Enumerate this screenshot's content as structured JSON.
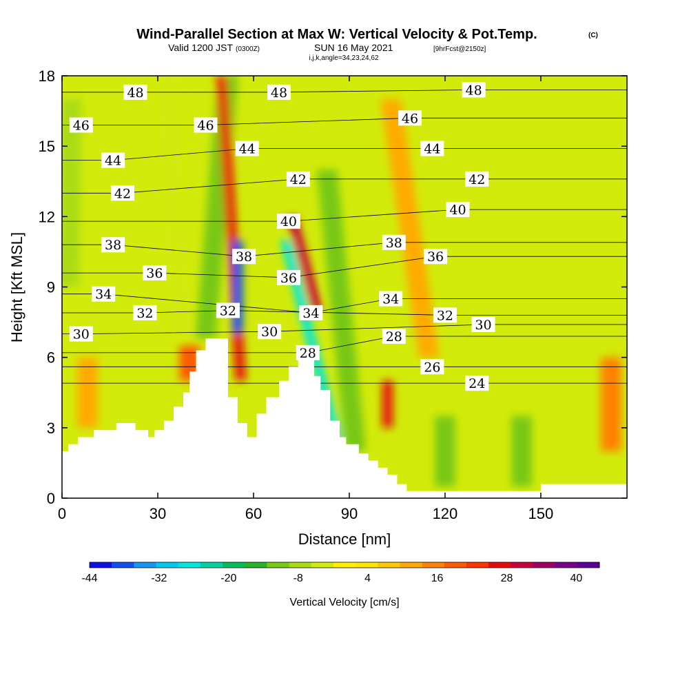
{
  "title": {
    "main": "Wind-Parallel Section at Max W: Vertical Velocity & Pot.Temp.",
    "main_mark": "(C)",
    "valid": "Valid 1200 JST",
    "valid_z": "(0300Z)",
    "date": "SUN 16 May 2021",
    "fcst": "[9hrFcst@2150z]",
    "indices": "i,j,k,angle=34,23,24,62"
  },
  "chart_data": {
    "type": "heatmap",
    "xlabel": "Distance [nm]",
    "ylabel": "Height [Kft MSL]",
    "xlim": [
      0,
      177
    ],
    "ylim": [
      0,
      18
    ],
    "xticks": [
      "0",
      "30",
      "60",
      "90",
      "120",
      "150"
    ],
    "xtick_values": [
      0,
      30,
      60,
      90,
      120,
      150
    ],
    "yticks": [
      "0",
      "3",
      "6",
      "9",
      "12",
      "15",
      "18"
    ],
    "ytick_values": [
      0,
      3,
      6,
      9,
      12,
      15,
      18
    ],
    "colorbar": {
      "title": "Vertical Velocity [cm/s]",
      "min": -44,
      "max": 44,
      "step": 4,
      "tick_labels": [
        "-44",
        "-32",
        "-20",
        "-8",
        "4",
        "16",
        "28",
        "40"
      ],
      "tick_values": [
        -44,
        -32,
        -20,
        -8,
        4,
        16,
        28,
        40
      ],
      "colors": [
        "#1010e6",
        "#1050f0",
        "#1496f0",
        "#00c8f0",
        "#00e6dc",
        "#00d2a0",
        "#00be5a",
        "#28b428",
        "#78c814",
        "#aadc14",
        "#d2eb0a",
        "#fff000",
        "#ffe600",
        "#ffc800",
        "#ffaa00",
        "#ff8200",
        "#ff5a00",
        "#ff3200",
        "#e60a0a",
        "#c8003c",
        "#a00064",
        "#78008c",
        "#5a0096"
      ]
    },
    "terrain_kft": [
      [
        0,
        2.0
      ],
      [
        2,
        2.0
      ],
      [
        2,
        2.3
      ],
      [
        5,
        2.3
      ],
      [
        5,
        2.6
      ],
      [
        10,
        2.6
      ],
      [
        10,
        2.9
      ],
      [
        17,
        2.9
      ],
      [
        17,
        3.2
      ],
      [
        23,
        3.2
      ],
      [
        23,
        2.9
      ],
      [
        27,
        2.9
      ],
      [
        27,
        2.6
      ],
      [
        29,
        2.6
      ],
      [
        29,
        2.9
      ],
      [
        32,
        2.9
      ],
      [
        32,
        3.3
      ],
      [
        35,
        3.3
      ],
      [
        35,
        3.9
      ],
      [
        38,
        3.9
      ],
      [
        38,
        4.5
      ],
      [
        40,
        4.5
      ],
      [
        40,
        5.4
      ],
      [
        42,
        5.4
      ],
      [
        42,
        6.3
      ],
      [
        45,
        6.3
      ],
      [
        45,
        6.8
      ],
      [
        52,
        6.8
      ],
      [
        52,
        4.3
      ],
      [
        55,
        4.3
      ],
      [
        55,
        3.2
      ],
      [
        58,
        3.2
      ],
      [
        58,
        2.6
      ],
      [
        61,
        2.6
      ],
      [
        61,
        3.6
      ],
      [
        64,
        3.6
      ],
      [
        64,
        4.3
      ],
      [
        68,
        4.3
      ],
      [
        68,
        5.0
      ],
      [
        71,
        5.0
      ],
      [
        71,
        5.6
      ],
      [
        74,
        5.6
      ],
      [
        74,
        5.9
      ],
      [
        79,
        5.9
      ],
      [
        79,
        5.2
      ],
      [
        81,
        5.2
      ],
      [
        81,
        4.6
      ],
      [
        84,
        4.6
      ],
      [
        84,
        3.3
      ],
      [
        87,
        3.3
      ],
      [
        87,
        2.6
      ],
      [
        89,
        2.6
      ],
      [
        89,
        2.3
      ],
      [
        93,
        2.3
      ],
      [
        93,
        1.9
      ],
      [
        96,
        1.9
      ],
      [
        96,
        1.6
      ],
      [
        99,
        1.6
      ],
      [
        99,
        1.3
      ],
      [
        102,
        1.3
      ],
      [
        102,
        1.0
      ],
      [
        105,
        1.0
      ],
      [
        105,
        0.6
      ],
      [
        108,
        0.6
      ],
      [
        108,
        0.3
      ],
      [
        150,
        0.3
      ],
      [
        150,
        0.6
      ],
      [
        177,
        0.6
      ],
      [
        177,
        0
      ],
      [
        0,
        0
      ]
    ],
    "velocity_bands": [
      {
        "x_bottom": 2,
        "x_top": 3,
        "y_from": 9,
        "y_to": 17,
        "w": -8
      },
      {
        "x_bottom": 37,
        "x_top": 33,
        "y_from": 7,
        "y_to": 18,
        "w": -4
      },
      {
        "x_bottom": 45,
        "x_top": 52,
        "y_from": 6.8,
        "y_to": 18,
        "w": -10
      },
      {
        "x_bottom": 56,
        "x_top": 50,
        "y_from": 5,
        "y_to": 18,
        "w": 30
      },
      {
        "x_bottom": 55,
        "x_top": 55,
        "y_from": 7,
        "y_to": 11,
        "w": -40
      },
      {
        "x_bottom": 86,
        "x_top": 70,
        "y_from": 2.5,
        "y_to": 11,
        "w": -28
      },
      {
        "x_bottom": 80,
        "x_top": 72,
        "y_from": 8,
        "y_to": 12,
        "w": 34
      },
      {
        "x_bottom": 102,
        "x_top": 102,
        "y_from": 3,
        "y_to": 5,
        "w": 30
      },
      {
        "x_bottom": 92,
        "x_top": 83,
        "y_from": 2,
        "y_to": 14,
        "w": -12
      },
      {
        "x_bottom": 115,
        "x_top": 103,
        "y_from": 6,
        "y_to": 17,
        "w": 12
      },
      {
        "x_bottom": 172,
        "x_top": 172,
        "y_from": 2,
        "y_to": 6,
        "w": 16
      },
      {
        "x_bottom": 120,
        "x_top": 120,
        "y_from": 0.5,
        "y_to": 3.5,
        "w": -10
      },
      {
        "x_bottom": 144,
        "x_top": 144,
        "y_from": 0.5,
        "y_to": 3.5,
        "w": -10
      },
      {
        "x_bottom": 8,
        "x_top": 8,
        "y_from": 3,
        "y_to": 6,
        "w": 14
      },
      {
        "x_bottom": 40,
        "x_top": 40,
        "y_from": 5,
        "y_to": 6.5,
        "w": 20
      }
    ],
    "isentrope_labels": [
      {
        "text": "48",
        "x": 23,
        "y": 17.3
      },
      {
        "text": "48",
        "x": 68,
        "y": 17.3
      },
      {
        "text": "48",
        "x": 129,
        "y": 17.4
      },
      {
        "text": "46",
        "x": 6,
        "y": 15.9
      },
      {
        "text": "46",
        "x": 45,
        "y": 15.9
      },
      {
        "text": "46",
        "x": 109,
        "y": 16.2
      },
      {
        "text": "44",
        "x": 16,
        "y": 14.4
      },
      {
        "text": "44",
        "x": 58,
        "y": 14.9
      },
      {
        "text": "44",
        "x": 116,
        "y": 14.9
      },
      {
        "text": "42",
        "x": 19,
        "y": 13.0
      },
      {
        "text": "42",
        "x": 74,
        "y": 13.6
      },
      {
        "text": "42",
        "x": 130,
        "y": 13.6
      },
      {
        "text": "40",
        "x": 71,
        "y": 11.8
      },
      {
        "text": "40",
        "x": 124,
        "y": 12.3
      },
      {
        "text": "38",
        "x": 16,
        "y": 10.8
      },
      {
        "text": "38",
        "x": 57,
        "y": 10.3
      },
      {
        "text": "38",
        "x": 104,
        "y": 10.9
      },
      {
        "text": "36",
        "x": 29,
        "y": 9.6
      },
      {
        "text": "36",
        "x": 71,
        "y": 9.4
      },
      {
        "text": "36",
        "x": 117,
        "y": 10.3
      },
      {
        "text": "34",
        "x": 13,
        "y": 8.7
      },
      {
        "text": "34",
        "x": 78,
        "y": 7.9
      },
      {
        "text": "34",
        "x": 103,
        "y": 8.5
      },
      {
        "text": "32",
        "x": 26,
        "y": 7.9
      },
      {
        "text": "32",
        "x": 52,
        "y": 8.0
      },
      {
        "text": "32",
        "x": 120,
        "y": 7.8
      },
      {
        "text": "30",
        "x": 6,
        "y": 7.0
      },
      {
        "text": "30",
        "x": 65,
        "y": 7.1
      },
      {
        "text": "30",
        "x": 132,
        "y": 7.4
      },
      {
        "text": "28",
        "x": 77,
        "y": 6.2
      },
      {
        "text": "28",
        "x": 104,
        "y": 6.9
      },
      {
        "text": "26",
        "x": 116,
        "y": 5.6
      },
      {
        "text": "24",
        "x": 130,
        "y": 4.9
      }
    ]
  }
}
